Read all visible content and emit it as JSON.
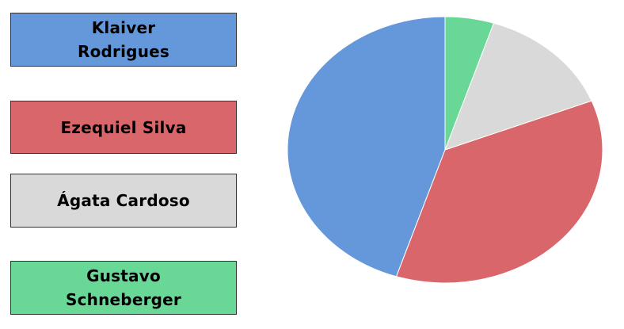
{
  "chart_data": {
    "type": "pie",
    "title": "",
    "legend_placement": "left",
    "series": [
      {
        "name": "Klaiver Rodrigues",
        "value": 45,
        "color": "#6597db"
      },
      {
        "name": "Ezequiel Silva",
        "value": 36,
        "color": "#d9666a"
      },
      {
        "name": "Ágata Cardoso",
        "value": 14,
        "color": "#d9d9d9"
      },
      {
        "name": "Gustavo Schneberger",
        "value": 5,
        "color": "#69d796"
      }
    ]
  }
}
